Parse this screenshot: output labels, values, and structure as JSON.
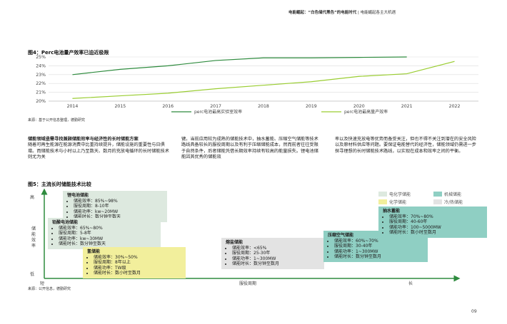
{
  "header": {
    "bold": "电能崛起：“白色储代黑色”的电能时代",
    "sep": "|",
    "rest": "电能崛起各主大机遇"
  },
  "figure4": {
    "title": "图4：Perc电池量产效率已迫近极限",
    "source": "来源：基于公开信息整理，德勤研究"
  },
  "chart_data": {
    "type": "line",
    "x": [
      "2014",
      "2015",
      "2016",
      "2017",
      "2018",
      "2019",
      "2020",
      "2021",
      "2022"
    ],
    "ylim": [
      20,
      25
    ],
    "yticks": [
      "20%",
      "21%",
      "22%",
      "23%",
      "24%",
      "25%"
    ],
    "grid": true,
    "legend_position": "bottom",
    "series": [
      {
        "name": "perc电池最高实验室效率",
        "color": "#2e8b3e",
        "values": [
          23.0,
          23.6,
          24.0,
          24.6,
          24.9,
          24.9,
          24.95,
          25.0,
          null
        ]
      },
      {
        "name": "perc电池最高量产效率",
        "color": "#9acd32",
        "values": [
          20.3,
          20.6,
          20.9,
          21.4,
          21.8,
          22.2,
          22.8,
          23.1,
          24.5
        ]
      }
    ]
  },
  "text": {
    "col1_heading": "储能领域亟需寻找兼顾储能效率与经济性的长时储能方案",
    "col1_body": "随着可再生能源在能源消费中比重持续提升，储能设施的重要性与日俱增。而储能技术与小时以上乃至数天、数月的充放电循环的长时储能技术则尤为关",
    "col2_body": "键。当前应用较为成熟的储能技术中，抽水蓄能、压缩空气储能等技术路线具备较长的服役周期以及有利于压缩储能成本，然而前者往往受限于自然条件，后者储能凭借长期效率持续有较高的能量损失。锂电池储能因其优秀的储能效",
    "col3_body": "率以及快速充放电等优势而备受关注，但也不得不关注到潜在的安全风险以及原材料供应等问题。要保证电能替代的经济性，储能领域仍需进一步探寻理想的长时储能技术路线，以实现在成本和效率之间的平衡。"
  },
  "figure5": {
    "title": "图5：主流长时储能技术比较",
    "y_high": "高",
    "y_low": "低",
    "y_axis_label": "储能效率",
    "x_axis_label": "服役周期",
    "x_high": "长",
    "source": "来源：公开信息，德勤研究",
    "legend": [
      {
        "label": "电化学储能",
        "color": "#dde9df"
      },
      {
        "label": "机械储能",
        "color": "#8fcfc3"
      },
      {
        "label": "化学储能",
        "color": "#f2ef9c"
      },
      {
        "label": "冷/热储能",
        "color": "#e3e3e3"
      }
    ],
    "boxes": [
      {
        "key": "li",
        "title": "锂电池储能",
        "items": [
          "储能效率：85%~98%",
          "服役周期：8-10年",
          "储能功率：kw~20MW",
          "储能时长：数分钟至数天"
        ]
      },
      {
        "key": "pb",
        "title": "铅酸电池储能",
        "items": [
          "储能效率：65%~80%",
          "服役周期：5-8年",
          "储能功率：kw~30MW",
          "储能时长：数分钟至数天"
        ]
      },
      {
        "key": "h2",
        "title": "氢储能",
        "items": [
          "储能效率：30%~50%",
          "服役周期：8年以上",
          "储能功率：TW级",
          "储能时长：数小时至数月"
        ]
      },
      {
        "key": "salt",
        "title": "熔盐储能",
        "items": [
          "储能效率：<65%",
          "服役周期：25-30年",
          "储能功率：1~300MW",
          "储能时长：数分钟至数月"
        ]
      },
      {
        "key": "air",
        "title": "压缩空气储能",
        "items": [
          "储能效率：60%~70%",
          "服役周期：30-40年",
          "储能功率：1~300MW",
          "储能时长：数分钟至数月"
        ]
      },
      {
        "key": "pump",
        "title": "抽水蓄能",
        "items": [
          "储能效率：70%~80%",
          "服役周期：40-60年",
          "储能功率：100~5000MW",
          "储能时长：数小时至数月"
        ]
      }
    ]
  },
  "page_number": "09"
}
